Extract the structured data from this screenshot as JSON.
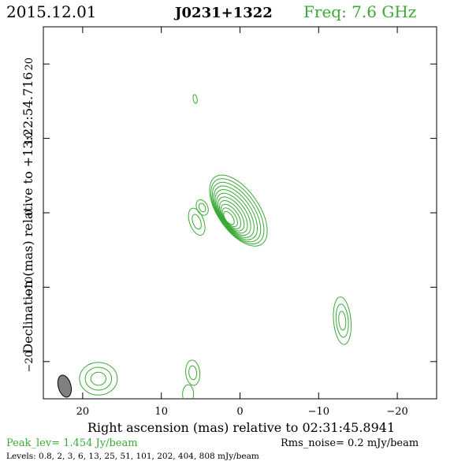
{
  "header": {
    "date": "2015.12.01",
    "source": "J0231+1322",
    "freq": "Freq: 7.6 GHz"
  },
  "footer": {
    "peak": "Peak_lev=  1.454 Jy/beam",
    "rms": "Rms_noise=  0.2 mJy/beam",
    "levels": "Levels: 0.8,    2,    3,    6,   13,   25,   51, 101, 202, 404, 808 mJy/beam"
  },
  "colors": {
    "contour": "#3aaa35",
    "beam": "#808080",
    "axis": "#000000"
  },
  "chart_data": {
    "type": "contour",
    "title": "",
    "xlabel": "Right ascension (mas) relative to 02:31:45.8941",
    "ylabel": "Declination (mas) relative to +13:22:54.716",
    "xlim": [
      25,
      -25
    ],
    "ylim": [
      -25,
      25
    ],
    "xticks": [
      20,
      10,
      0,
      -10,
      -20
    ],
    "yticks": [
      20,
      10,
      0,
      -10,
      -20
    ],
    "xtick_labels": [
      "20",
      "10",
      "0",
      "−10",
      "−20"
    ],
    "ytick_labels": [
      "20",
      "10",
      "0",
      "−10",
      "−20"
    ],
    "contour_levels_mjy": [
      0.8,
      2,
      3,
      6,
      13,
      25,
      51,
      101,
      202,
      404,
      808
    ],
    "peak_jy_per_beam": 1.454,
    "rms_mjy_per_beam": 0.2,
    "components": [
      {
        "name": "core",
        "x": 0.2,
        "y": 0.3,
        "a": 5.5,
        "b": 2.6,
        "pa_deg": 35,
        "nlev": 11
      },
      {
        "name": "knot-a",
        "x": 5.5,
        "y": -1.2,
        "a": 1.9,
        "b": 0.9,
        "pa_deg": 20,
        "nlev": 2
      },
      {
        "name": "knot-b",
        "x": 4.8,
        "y": 0.7,
        "a": 1.1,
        "b": 0.7,
        "pa_deg": 25,
        "nlev": 2
      },
      {
        "name": "knot-c",
        "x": 5.7,
        "y": 15.3,
        "a": 0.6,
        "b": 0.25,
        "pa_deg": 10,
        "nlev": 1
      },
      {
        "name": "knot-d",
        "x": -13,
        "y": -14.5,
        "a": 3.2,
        "b": 1.1,
        "pa_deg": 5,
        "nlev": 3
      },
      {
        "name": "knot-e",
        "x": 18,
        "y": -22.3,
        "a": 2.2,
        "b": 2.4,
        "pa_deg": 0,
        "nlev": 3
      },
      {
        "name": "knot-f",
        "x": 6,
        "y": -21.5,
        "a": 1.7,
        "b": 0.9,
        "pa_deg": 5,
        "nlev": 2
      },
      {
        "name": "knot-g",
        "x": 6.6,
        "y": -24.4,
        "a": 1.3,
        "b": 0.7,
        "pa_deg": 0,
        "nlev": 1
      }
    ],
    "beam": {
      "x": 22.3,
      "y": -23.3,
      "major": 2.6,
      "minor": 1.2,
      "pa_deg": 15
    }
  }
}
